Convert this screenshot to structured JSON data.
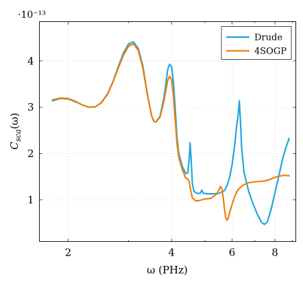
{
  "chart_data": {
    "type": "line",
    "title": "",
    "xlabel": "ω (PHz)",
    "ylabel": "C_sca(ω)",
    "y_exponent_label": "·10⁻¹³",
    "xscale": "log",
    "xlim": [
      1.65,
      9.2
    ],
    "ylim": [
      0.1,
      4.85
    ],
    "x_ticks": [
      2,
      4,
      6,
      8
    ],
    "y_ticks": [
      1,
      2,
      3,
      4
    ],
    "grid": true,
    "legend_position": "top-right",
    "series": [
      {
        "name": "Drude",
        "color": "#1fa7dd",
        "points": [
          [
            1.8,
            3.14
          ],
          [
            1.9,
            3.19
          ],
          [
            2.0,
            3.18
          ],
          [
            2.1,
            3.12
          ],
          [
            2.2,
            3.05
          ],
          [
            2.3,
            3.0
          ],
          [
            2.4,
            3.01
          ],
          [
            2.5,
            3.1
          ],
          [
            2.6,
            3.28
          ],
          [
            2.7,
            3.55
          ],
          [
            2.8,
            3.88
          ],
          [
            2.9,
            4.18
          ],
          [
            3.0,
            4.37
          ],
          [
            3.1,
            4.41
          ],
          [
            3.2,
            4.27
          ],
          [
            3.3,
            3.9
          ],
          [
            3.4,
            3.3
          ],
          [
            3.5,
            2.82
          ],
          [
            3.55,
            2.7
          ],
          [
            3.6,
            2.68
          ],
          [
            3.7,
            2.8
          ],
          [
            3.8,
            3.2
          ],
          [
            3.9,
            3.82
          ],
          [
            3.95,
            3.93
          ],
          [
            4.0,
            3.88
          ],
          [
            4.05,
            3.55
          ],
          [
            4.1,
            2.98
          ],
          [
            4.15,
            2.35
          ],
          [
            4.2,
            2.0
          ],
          [
            4.3,
            1.72
          ],
          [
            4.4,
            1.57
          ],
          [
            4.46,
            1.58
          ],
          [
            4.5,
            1.85
          ],
          [
            4.53,
            2.23
          ],
          [
            4.56,
            1.9
          ],
          [
            4.6,
            1.35
          ],
          [
            4.65,
            1.18
          ],
          [
            4.75,
            1.14
          ],
          [
            4.85,
            1.14
          ],
          [
            4.9,
            1.21
          ],
          [
            4.95,
            1.14
          ],
          [
            5.1,
            1.13
          ],
          [
            5.3,
            1.13
          ],
          [
            5.5,
            1.14
          ],
          [
            5.7,
            1.2
          ],
          [
            5.8,
            1.3
          ],
          [
            5.9,
            1.48
          ],
          [
            6.0,
            1.75
          ],
          [
            6.1,
            2.15
          ],
          [
            6.2,
            2.65
          ],
          [
            6.25,
            2.82
          ],
          [
            6.3,
            3.14
          ],
          [
            6.35,
            2.7
          ],
          [
            6.4,
            2.12
          ],
          [
            6.5,
            1.6
          ],
          [
            6.7,
            1.2
          ],
          [
            6.9,
            0.92
          ],
          [
            7.1,
            0.7
          ],
          [
            7.3,
            0.52
          ],
          [
            7.45,
            0.47
          ],
          [
            7.6,
            0.52
          ],
          [
            7.8,
            0.8
          ],
          [
            8.0,
            1.15
          ],
          [
            8.2,
            1.5
          ],
          [
            8.4,
            1.85
          ],
          [
            8.6,
            2.12
          ],
          [
            8.8,
            2.33
          ]
        ]
      },
      {
        "name": "4SOGP",
        "color": "#f07f0c",
        "points": [
          [
            1.8,
            3.16
          ],
          [
            1.9,
            3.2
          ],
          [
            2.0,
            3.19
          ],
          [
            2.1,
            3.13
          ],
          [
            2.2,
            3.05
          ],
          [
            2.3,
            3.0
          ],
          [
            2.4,
            3.01
          ],
          [
            2.5,
            3.1
          ],
          [
            2.6,
            3.27
          ],
          [
            2.7,
            3.54
          ],
          [
            2.8,
            3.85
          ],
          [
            2.9,
            4.13
          ],
          [
            3.0,
            4.32
          ],
          [
            3.1,
            4.37
          ],
          [
            3.2,
            4.23
          ],
          [
            3.3,
            3.85
          ],
          [
            3.4,
            3.28
          ],
          [
            3.5,
            2.82
          ],
          [
            3.55,
            2.7
          ],
          [
            3.6,
            2.68
          ],
          [
            3.7,
            2.78
          ],
          [
            3.8,
            3.13
          ],
          [
            3.9,
            3.58
          ],
          [
            3.95,
            3.67
          ],
          [
            4.0,
            3.6
          ],
          [
            4.05,
            3.25
          ],
          [
            4.1,
            2.72
          ],
          [
            4.15,
            2.2
          ],
          [
            4.2,
            1.92
          ],
          [
            4.3,
            1.65
          ],
          [
            4.4,
            1.47
          ],
          [
            4.46,
            1.45
          ],
          [
            4.5,
            1.4
          ],
          [
            4.55,
            1.2
          ],
          [
            4.6,
            1.04
          ],
          [
            4.7,
            0.98
          ],
          [
            4.8,
            0.98
          ],
          [
            4.9,
            1.0
          ],
          [
            5.0,
            1.02
          ],
          [
            5.2,
            1.03
          ],
          [
            5.4,
            1.12
          ],
          [
            5.5,
            1.22
          ],
          [
            5.55,
            1.29
          ],
          [
            5.6,
            1.25
          ],
          [
            5.65,
            1.08
          ],
          [
            5.7,
            0.82
          ],
          [
            5.75,
            0.62
          ],
          [
            5.8,
            0.56
          ],
          [
            5.85,
            0.6
          ],
          [
            5.9,
            0.72
          ],
          [
            6.0,
            0.9
          ],
          [
            6.1,
            1.06
          ],
          [
            6.2,
            1.18
          ],
          [
            6.3,
            1.25
          ],
          [
            6.5,
            1.33
          ],
          [
            6.7,
            1.37
          ],
          [
            7.0,
            1.39
          ],
          [
            7.3,
            1.4
          ],
          [
            7.6,
            1.42
          ],
          [
            7.9,
            1.47
          ],
          [
            8.2,
            1.51
          ],
          [
            8.5,
            1.53
          ],
          [
            8.8,
            1.52
          ]
        ]
      }
    ]
  }
}
